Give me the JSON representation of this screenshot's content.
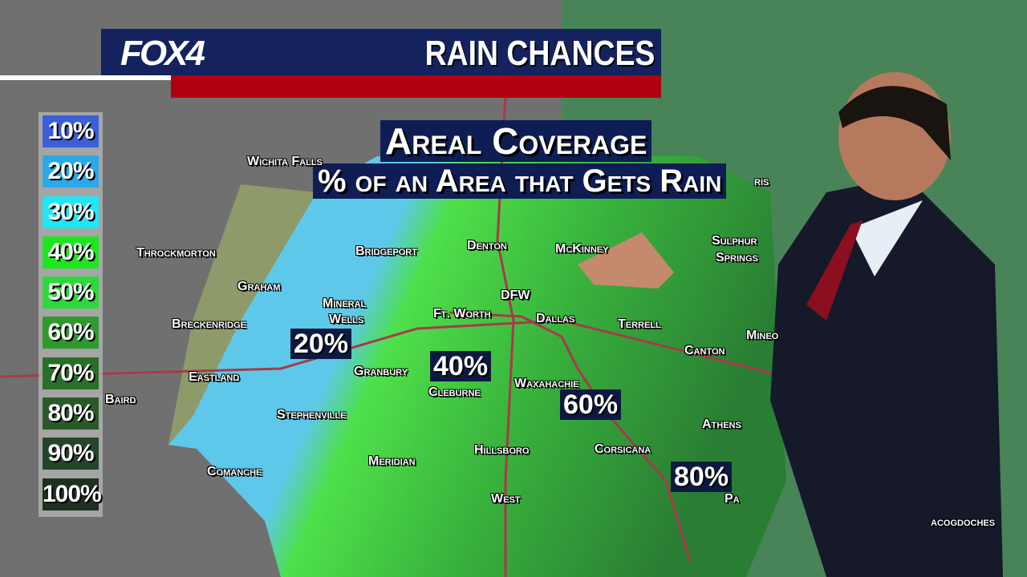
{
  "header": {
    "logo": "FOX4",
    "title": "RAIN CHANCES"
  },
  "subtitle": {
    "line1": "Areal Coverage",
    "line2": "% of an Area that Gets Rain"
  },
  "legend": [
    {
      "label": "10%",
      "color": "#3a5fd8"
    },
    {
      "label": "20%",
      "color": "#2aa8e8"
    },
    {
      "label": "30%",
      "color": "#1ee6f2"
    },
    {
      "label": "40%",
      "color": "#1ee61e"
    },
    {
      "label": "50%",
      "color": "#2ed83a"
    },
    {
      "label": "60%",
      "color": "#2e9a2e"
    },
    {
      "label": "70%",
      "color": "#2a6e2a"
    },
    {
      "label": "80%",
      "color": "#2a5a2a"
    },
    {
      "label": "90%",
      "color": "#25452a"
    },
    {
      "label": "100%",
      "color": "#1e3020"
    }
  ],
  "cities": [
    "Wichita Falls",
    "Throckmorton",
    "Graham",
    "Breckenridge",
    "Eastland",
    "Baird",
    "Comanche",
    "Stephenville",
    "Mineral",
    "Wells",
    "Bridgeport",
    "Denton",
    "McKinney",
    "DFW",
    "Ft. Worth",
    "Dallas",
    "Terrell",
    "Canton",
    "Granbury",
    "Cleburne",
    "Waxahachie",
    "Corsicana",
    "Hillsboro",
    "Meridian",
    "West",
    "Athens",
    "Sulphur",
    "Springs",
    "Mineo",
    "Pa",
    "acogdoches",
    "ris"
  ],
  "coverage_labels": [
    "20%",
    "40%",
    "60%",
    "80%"
  ]
}
